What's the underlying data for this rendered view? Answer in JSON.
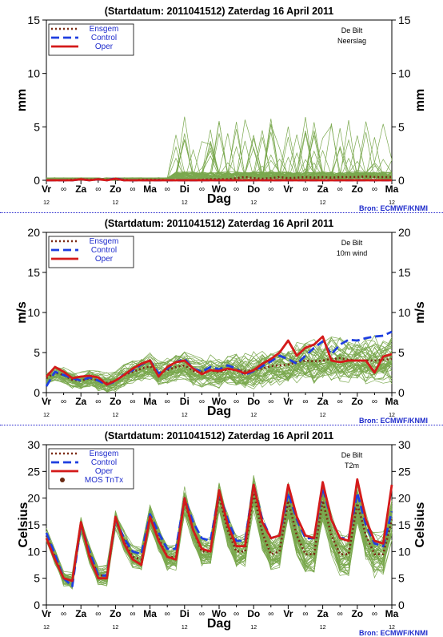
{
  "colors": {
    "ensgem": "#7b2a14",
    "control": "#1f3fe0",
    "oper": "#d41a1a",
    "members": "#7aa84e",
    "mos": "#6b2a14",
    "legend_text": "#1f2ccc",
    "source_text": "#1f2ccc",
    "divider": "#2222cc"
  },
  "source": "Bron: ECMWF/KNMI",
  "chart_data": [
    {
      "type": "line",
      "title": "(Startdatum: 2011041512)  Zaterdag  16 April     2011",
      "location": "De Bilt",
      "variable": "Neerslag",
      "ylabel": "mm",
      "xlabel": "Dag",
      "ylim": [
        0,
        15
      ],
      "yticks": [
        0,
        5,
        10,
        15
      ],
      "day_labels": [
        "Vr",
        "Za",
        "Zo",
        "Ma",
        "Di",
        "Wo",
        "Do",
        "Vr",
        "Za",
        "Zo",
        "Ma"
      ],
      "half_day_label": "12",
      "midnight_mark": "∞",
      "show_bron": true,
      "legend": [
        "Ensgem",
        "Control",
        "Oper"
      ],
      "x": [
        0,
        0.25,
        0.5,
        0.75,
        1,
        1.25,
        1.5,
        1.75,
        2,
        2.25,
        2.5,
        2.75,
        3,
        3.25,
        3.5,
        3.75,
        4,
        4.25,
        4.5,
        4.75,
        5,
        5.25,
        5.5,
        5.75,
        6,
        6.25,
        6.5,
        6.75,
        7,
        7.25,
        7.5,
        7.75,
        8,
        8.25,
        8.5,
        8.75,
        9,
        9.25,
        9.5,
        9.75,
        10
      ],
      "series": [
        {
          "name": "Ensgem",
          "style": "dotted",
          "values": [
            0,
            0,
            0,
            0.05,
            0.1,
            0.05,
            0.1,
            0.05,
            0.1,
            0.05,
            0,
            0.05,
            0.05,
            0.05,
            0,
            0,
            0,
            0,
            0.05,
            0.1,
            0.1,
            0.1,
            0.2,
            0.3,
            0.2,
            0.15,
            0.2,
            0.3,
            0.2,
            0.25,
            0.3,
            0.25,
            0.3,
            0.25,
            0.3,
            0.3,
            0.3,
            0.35,
            0.3,
            0.3,
            0.3
          ]
        },
        {
          "name": "Control",
          "style": "dashed",
          "values": [
            0,
            0,
            0,
            0,
            0.1,
            0,
            0.1,
            0,
            0.2,
            0,
            0,
            0,
            0,
            0,
            0,
            0,
            0,
            0,
            0,
            0,
            0,
            0,
            0,
            0,
            0,
            0,
            0,
            0,
            0,
            0,
            0,
            0,
            0,
            0,
            0,
            0,
            0,
            0,
            0,
            0,
            0
          ]
        },
        {
          "name": "Oper",
          "style": "solid",
          "values": [
            0,
            0,
            0,
            0,
            0.1,
            0,
            0.1,
            0,
            0.15,
            0,
            0,
            0,
            0,
            0,
            0,
            0,
            0,
            0,
            0,
            0,
            0,
            0,
            0,
            0,
            0,
            0,
            0,
            0,
            0,
            0,
            0,
            0,
            0,
            0,
            0,
            0,
            0,
            0,
            0,
            0,
            0
          ]
        }
      ]
    },
    {
      "type": "line",
      "title": "(Startdatum: 2011041512)  Zaterdag  16 April     2011",
      "location": "De Bilt",
      "variable": "10m wind",
      "ylabel": "m/s",
      "xlabel": "Dag",
      "ylim": [
        0,
        20
      ],
      "yticks": [
        0,
        5,
        10,
        15,
        20
      ],
      "day_labels": [
        "Vr",
        "Za",
        "Zo",
        "Ma",
        "Di",
        "Wo",
        "Do",
        "Vr",
        "Za",
        "Zo",
        "Ma"
      ],
      "half_day_label": "12",
      "midnight_mark": "∞",
      "show_bron": true,
      "legend": [
        "Ensgem",
        "Control",
        "Oper"
      ],
      "x": [
        0,
        0.25,
        0.5,
        0.75,
        1,
        1.25,
        1.5,
        1.75,
        2,
        2.25,
        2.5,
        2.75,
        3,
        3.25,
        3.5,
        3.75,
        4,
        4.25,
        4.5,
        4.75,
        5,
        5.25,
        5.5,
        5.75,
        6,
        6.25,
        6.5,
        6.75,
        7,
        7.25,
        7.5,
        7.75,
        8,
        8.25,
        8.5,
        8.75,
        9,
        9.25,
        9.5,
        9.75,
        10
      ],
      "series": [
        {
          "name": "Ensgem",
          "style": "dotted",
          "values": [
            1.8,
            2.5,
            2.2,
            1.6,
            1.5,
            1.8,
            1.5,
            1.2,
            1.5,
            2.2,
            2.6,
            3.0,
            3.3,
            2.4,
            2.8,
            3.2,
            3.4,
            2.7,
            2.6,
            2.8,
            2.6,
            2.9,
            2.8,
            2.7,
            2.8,
            3.0,
            3.3,
            3.4,
            3.5,
            3.8,
            4.0,
            3.9,
            4.0,
            4.2,
            4.3,
            4.1,
            4.0,
            4.0,
            4.0,
            4.1,
            4.2
          ]
        },
        {
          "name": "Control",
          "style": "dashed",
          "values": [
            0.8,
            2.6,
            2.2,
            1.8,
            1.5,
            1.9,
            1.5,
            1.0,
            1.4,
            2.3,
            2.8,
            3.5,
            4.0,
            2.4,
            3.0,
            3.8,
            4.2,
            3.0,
            2.6,
            3.2,
            2.9,
            3.4,
            3.0,
            2.2,
            2.7,
            3.3,
            3.9,
            4.6,
            4.2,
            3.6,
            4.6,
            5.6,
            6.4,
            4.8,
            6.0,
            6.6,
            6.5,
            6.8,
            7.0,
            7.1,
            7.6
          ]
        },
        {
          "name": "Oper",
          "style": "solid",
          "values": [
            2.0,
            3.2,
            2.6,
            1.8,
            2.0,
            2.1,
            1.9,
            1.0,
            1.5,
            2.2,
            3.0,
            3.6,
            4.0,
            2.0,
            3.2,
            3.8,
            4.0,
            3.0,
            2.3,
            2.8,
            2.7,
            3.0,
            2.8,
            2.4,
            2.8,
            3.6,
            4.2,
            5.0,
            6.5,
            4.6,
            5.6,
            6.0,
            7.0,
            4.0,
            3.8,
            4.0,
            4.0,
            4.0,
            2.5,
            4.5,
            4.8
          ]
        }
      ]
    },
    {
      "type": "line",
      "title": "(Startdatum: 2011041512)  Zaterdag  16 April     2011",
      "location": "De Bilt",
      "variable": "T2m",
      "ylabel": "Celsius",
      "xlabel": "Dag",
      "ylim": [
        0,
        30
      ],
      "yticks": [
        0,
        5,
        10,
        15,
        20,
        25,
        30
      ],
      "day_labels": [
        "Vr",
        "Za",
        "Zo",
        "Ma",
        "Di",
        "Wo",
        "Do",
        "Vr",
        "Za",
        "Zo",
        "Ma"
      ],
      "half_day_label": "12",
      "midnight_mark": "∞",
      "show_bron": true,
      "legend": [
        "Ensgem",
        "Control",
        "Oper",
        "MOS TnTx"
      ],
      "x": [
        0,
        0.25,
        0.5,
        0.75,
        1,
        1.25,
        1.5,
        1.75,
        2,
        2.25,
        2.5,
        2.75,
        3,
        3.25,
        3.5,
        3.75,
        4,
        4.25,
        4.5,
        4.75,
        5,
        5.25,
        5.5,
        5.75,
        6,
        6.25,
        6.5,
        6.75,
        7,
        7.25,
        7.5,
        7.75,
        8,
        8.25,
        8.5,
        8.75,
        9,
        9.25,
        9.5,
        9.75,
        10
      ],
      "series": [
        {
          "name": "Ensgem",
          "style": "dotted",
          "values": [
            13,
            9,
            5,
            4.5,
            15,
            9.5,
            5.5,
            5.5,
            16,
            12,
            9,
            8.5,
            16.5,
            12.5,
            9,
            9,
            19.5,
            14,
            10,
            10,
            20.5,
            14,
            10,
            10,
            21,
            13.5,
            9.5,
            10,
            19.5,
            13,
            9.5,
            9.5,
            19.5,
            13,
            9.5,
            9.5,
            19,
            13,
            9.5,
            9.5,
            16
          ]
        },
        {
          "name": "Control",
          "style": "dashed",
          "values": [
            13.5,
            9.5,
            5,
            3.5,
            15,
            10,
            5.5,
            5.5,
            16,
            12.5,
            10,
            9.5,
            17,
            13.5,
            10.5,
            10.5,
            20,
            15.5,
            12.5,
            12,
            21,
            16,
            12,
            12,
            22.5,
            16,
            12.5,
            13,
            21,
            16,
            12.5,
            12.5,
            22,
            16,
            12.5,
            12.5,
            21,
            15,
            11.5,
            11,
            17.5
          ]
        },
        {
          "name": "Oper",
          "style": "solid",
          "values": [
            12.5,
            8.5,
            5,
            4.5,
            15.5,
            9,
            5,
            5,
            16.5,
            11.5,
            8.5,
            7.5,
            16.5,
            12,
            9,
            8.5,
            20,
            14,
            10.5,
            10,
            21.5,
            15,
            11,
            11,
            22.5,
            15.5,
            12.5,
            13,
            22.5,
            16.5,
            13,
            12.5,
            23,
            16,
            12.5,
            12,
            23.5,
            16,
            12,
            11.5,
            22.5
          ]
        }
      ]
    }
  ]
}
